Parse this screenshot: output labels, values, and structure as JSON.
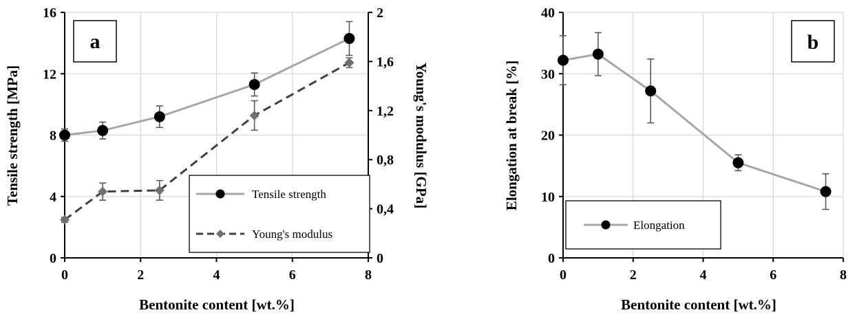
{
  "chart_data": [
    {
      "panel": "a",
      "type": "line",
      "xlabel": "Bentonite content [wt.%]",
      "ylabel": "Tensile strength [MPa]",
      "y2label": "Young's modulus [GPa]",
      "xlim": [
        0,
        8
      ],
      "ylim": [
        0,
        16
      ],
      "y2lim": [
        0,
        2
      ],
      "xticks": [
        "0",
        "2",
        "4",
        "6",
        "8"
      ],
      "yticks": [
        "0",
        "4",
        "8",
        "12",
        "16"
      ],
      "y2ticks": [
        "0",
        "0,4",
        "0,8",
        "1,2",
        "1,6",
        "2"
      ],
      "grid": true,
      "legend_position": "lower-right",
      "series": [
        {
          "name": "Tensile strength",
          "axis": "left",
          "color": "#a6a6a6",
          "dash": "solid",
          "marker": "circle",
          "marker_color": "#000000",
          "x": [
            0,
            1,
            2.5,
            5,
            7.5
          ],
          "y": [
            8.0,
            8.3,
            9.2,
            11.3,
            14.3
          ],
          "err": [
            0.4,
            0.55,
            0.7,
            0.75,
            1.1
          ]
        },
        {
          "name": "Young's modulus",
          "axis": "right",
          "color": "#404040",
          "dash": "dashed",
          "marker": "diamond",
          "marker_color": "#707070",
          "x": [
            0,
            1,
            2.5,
            5,
            7.5
          ],
          "y": [
            0.31,
            0.54,
            0.55,
            1.16,
            1.59
          ],
          "err": [
            0.02,
            0.07,
            0.08,
            0.12,
            0.04
          ]
        }
      ]
    },
    {
      "panel": "b",
      "type": "line",
      "xlabel": "Bentonite content [wt.%]",
      "ylabel": "Elongation at break [%]",
      "xlim": [
        0,
        8
      ],
      "ylim": [
        0,
        40
      ],
      "xticks": [
        "0",
        "2",
        "4",
        "6",
        "8"
      ],
      "yticks": [
        "0",
        "10",
        "20",
        "30",
        "40"
      ],
      "grid": true,
      "legend_position": "lower-left",
      "series": [
        {
          "name": "Elongation",
          "axis": "left",
          "color": "#a6a6a6",
          "dash": "solid",
          "marker": "circle",
          "marker_color": "#000000",
          "x": [
            0,
            1,
            2.5,
            5,
            7.5
          ],
          "y": [
            32.2,
            33.2,
            27.2,
            15.5,
            10.8
          ],
          "err": [
            4.0,
            3.5,
            5.2,
            1.3,
            2.9
          ]
        }
      ]
    }
  ]
}
